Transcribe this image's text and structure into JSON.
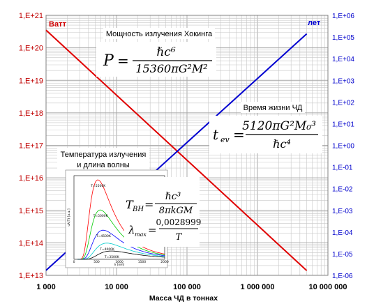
{
  "chart_data": {
    "type": "line",
    "x_scale": "log",
    "y_scale": "log",
    "grid": true,
    "xlabel": "Масса ЧД в тоннах",
    "x_ticks": [
      {
        "v": 1000,
        "label": "1 000"
      },
      {
        "v": 10000,
        "label": "10 000"
      },
      {
        "v": 100000,
        "label": "100 000"
      },
      {
        "v": 1000000,
        "label": "1 000 000"
      },
      {
        "v": 10000000,
        "label": "10 000 000"
      }
    ],
    "xlim": [
      1000,
      10000000
    ],
    "ylim_left": [
      10000000000000.0,
      1e+21
    ],
    "ylim_right": [
      1e-06,
      1000000.0
    ],
    "left_ticks": [
      "1,E+13",
      "1,E+14",
      "1,E+15",
      "1,E+16",
      "1,E+17",
      "1,E+18",
      "1,E+19",
      "1,E+20",
      "1,E+21"
    ],
    "right_ticks": [
      "1,E-06",
      "1,E-05",
      "1,E-04",
      "1,E-03",
      "1,E-02",
      "1,E-01",
      "1,E+00",
      "1,E+01",
      "1,E+02",
      "1,E+03",
      "1,E+04",
      "1,E+05",
      "1,E+06"
    ],
    "series": [
      {
        "name": "Ватт",
        "axis": "left",
        "color": "#e00000",
        "x": [
          1000,
          5000000
        ],
        "y": [
          3.5e+20,
          14000000000000.0
        ]
      },
      {
        "name": "лет",
        "axis": "right",
        "color": "#0000d0",
        "x": [
          1000,
          5000000
        ],
        "y": [
          1.7e-06,
          140000.0
        ]
      }
    ],
    "annotations": {
      "hawking_title": "Мощность излучения Хокинга",
      "lifetime_title": "Время жизни ЧД",
      "temp_title_line1": "Температура излучения",
      "temp_title_line2": "и длина волны"
    },
    "formulas": {
      "power": {
        "lhs": "P",
        "num": "ℏc⁶",
        "den": "15360πG²M²"
      },
      "lifetime": {
        "lhs": "t",
        "lhs_sub": "ev",
        "num": "5120πG²M₀³",
        "den": "ℏc⁴"
      },
      "temperature": {
        "lhs": "T",
        "lhs_sub": "BH",
        "num": "ℏc³",
        "den": "8πkGM"
      },
      "wavelength": {
        "lhs": "λ",
        "lhs_sub": "max",
        "num": "0,0028999",
        "den": "T"
      }
    },
    "inset": {
      "type": "line",
      "xlabel": "λ [nm]",
      "ylabel": "uλ(T) [a.u.]",
      "x_ticks": [
        "0",
        "500",
        "1000",
        "1500",
        "2000"
      ],
      "curves": [
        {
          "label": "T=5500K",
          "color": "#ff0000"
        },
        {
          "label": "T=5000K",
          "color": "#00cc00"
        },
        {
          "label": "T=4500K",
          "color": "#0000ff"
        },
        {
          "label": "T=4000K",
          "color": "#00cccc"
        },
        {
          "label": "T=3500K",
          "color": "#000000"
        }
      ]
    },
    "colors": {
      "left_axis": "#c00000",
      "right_axis": "#0000cc",
      "grid": "#c8c8c8"
    }
  }
}
